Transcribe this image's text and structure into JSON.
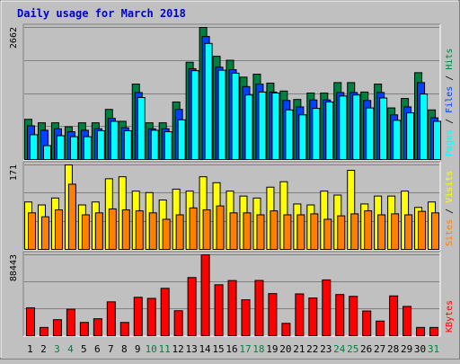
{
  "title": "Daily usage for March 2018",
  "colors": {
    "background": "#c0c0c0",
    "panel": "#c0c0c0",
    "grid": "#808080",
    "title": "#0000cc",
    "hits": "#008040",
    "files": "#0040ff",
    "pages": "#00ffff",
    "visits": "#ffff00",
    "sites": "#ff8000",
    "kbytes": "#ff0000",
    "day": "#000000",
    "weekend_day": "#008040"
  },
  "chart_data": [
    {
      "type": "bar",
      "panel": "top",
      "categories": [
        "1",
        "2",
        "3",
        "4",
        "5",
        "6",
        "7",
        "8",
        "9",
        "10",
        "11",
        "12",
        "13",
        "14",
        "15",
        "16",
        "17",
        "18",
        "19",
        "20",
        "21",
        "22",
        "23",
        "24",
        "25",
        "26",
        "27",
        "28",
        "29",
        "30",
        "31"
      ],
      "weekend_days": [
        "3",
        "4",
        "10",
        "11",
        "17",
        "18",
        "24",
        "25",
        "31"
      ],
      "ylabel_max": "2662",
      "ylim": [
        0,
        2662
      ],
      "legend": [
        {
          "label": "Hits",
          "color": "#008040"
        },
        {
          "label": "Files",
          "color": "#0040ff"
        },
        {
          "label": "Pages",
          "color": "#00ffff"
        }
      ],
      "series": [
        {
          "name": "Hits",
          "values": [
            810,
            740,
            740,
            660,
            740,
            740,
            1010,
            770,
            1520,
            740,
            740,
            1160,
            1960,
            2662,
            2080,
            2000,
            1660,
            1720,
            1540,
            1380,
            1210,
            1340,
            1340,
            1550,
            1550,
            1360,
            1520,
            1040,
            1230,
            1750,
            1000
          ]
        },
        {
          "name": "Files",
          "values": [
            680,
            590,
            620,
            560,
            590,
            620,
            830,
            640,
            1350,
            620,
            620,
            1010,
            1830,
            2480,
            1860,
            1810,
            1470,
            1520,
            1360,
            1190,
            1060,
            1200,
            1200,
            1350,
            1350,
            1190,
            1350,
            900,
            1060,
            1550,
            840
          ]
        },
        {
          "name": "Pages",
          "values": [
            500,
            280,
            480,
            460,
            460,
            580,
            770,
            580,
            1250,
            590,
            560,
            800,
            1790,
            2340,
            1800,
            1740,
            1300,
            1360,
            1340,
            1000,
            900,
            1030,
            1160,
            1280,
            1300,
            1040,
            1240,
            790,
            940,
            1320,
            770
          ]
        }
      ]
    },
    {
      "type": "bar",
      "panel": "middle",
      "categories": [
        "1",
        "2",
        "3",
        "4",
        "5",
        "6",
        "7",
        "8",
        "9",
        "10",
        "11",
        "12",
        "13",
        "14",
        "15",
        "16",
        "17",
        "18",
        "19",
        "20",
        "21",
        "22",
        "23",
        "24",
        "25",
        "26",
        "27",
        "28",
        "29",
        "30",
        "31"
      ],
      "ylabel_max": "171",
      "ylim": [
        0,
        171
      ],
      "legend": [
        {
          "label": "Visits",
          "color": "#ffff00"
        },
        {
          "label": "Sites",
          "color": "#ff8000"
        }
      ],
      "series": [
        {
          "name": "Visits",
          "values": [
            96,
            90,
            104,
            171,
            90,
            96,
            143,
            147,
            118,
            115,
            100,
            122,
            118,
            147,
            135,
            118,
            108,
            104,
            126,
            137,
            92,
            90,
            118,
            110,
            160,
            92,
            108,
            108,
            118,
            85,
            96
          ]
        },
        {
          "name": "Sites",
          "values": [
            74,
            66,
            80,
            132,
            70,
            74,
            82,
            80,
            78,
            74,
            61,
            70,
            84,
            80,
            88,
            74,
            74,
            70,
            78,
            70,
            70,
            72,
            61,
            68,
            72,
            78,
            70,
            72,
            70,
            77,
            74
          ]
        }
      ]
    },
    {
      "type": "bar",
      "panel": "bottom",
      "categories": [
        "1",
        "2",
        "3",
        "4",
        "5",
        "6",
        "7",
        "8",
        "9",
        "10",
        "11",
        "12",
        "13",
        "14",
        "15",
        "16",
        "17",
        "18",
        "19",
        "20",
        "21",
        "22",
        "23",
        "24",
        "25",
        "26",
        "27",
        "28",
        "29",
        "30",
        "31"
      ],
      "ylabel_max": "88443",
      "ylim": [
        0,
        88443
      ],
      "legend": [
        {
          "label": "KBytes",
          "color": "#ff0000"
        }
      ],
      "series": [
        {
          "name": "KBytes",
          "values": [
            30500,
            9000,
            17500,
            28900,
            14500,
            18500,
            37000,
            14500,
            42000,
            40800,
            51800,
            27300,
            63600,
            88443,
            55700,
            60300,
            39300,
            60400,
            46000,
            13500,
            45700,
            41200,
            61000,
            45000,
            43000,
            27000,
            16000,
            43500,
            32000,
            9000,
            9000
          ]
        }
      ]
    }
  ]
}
